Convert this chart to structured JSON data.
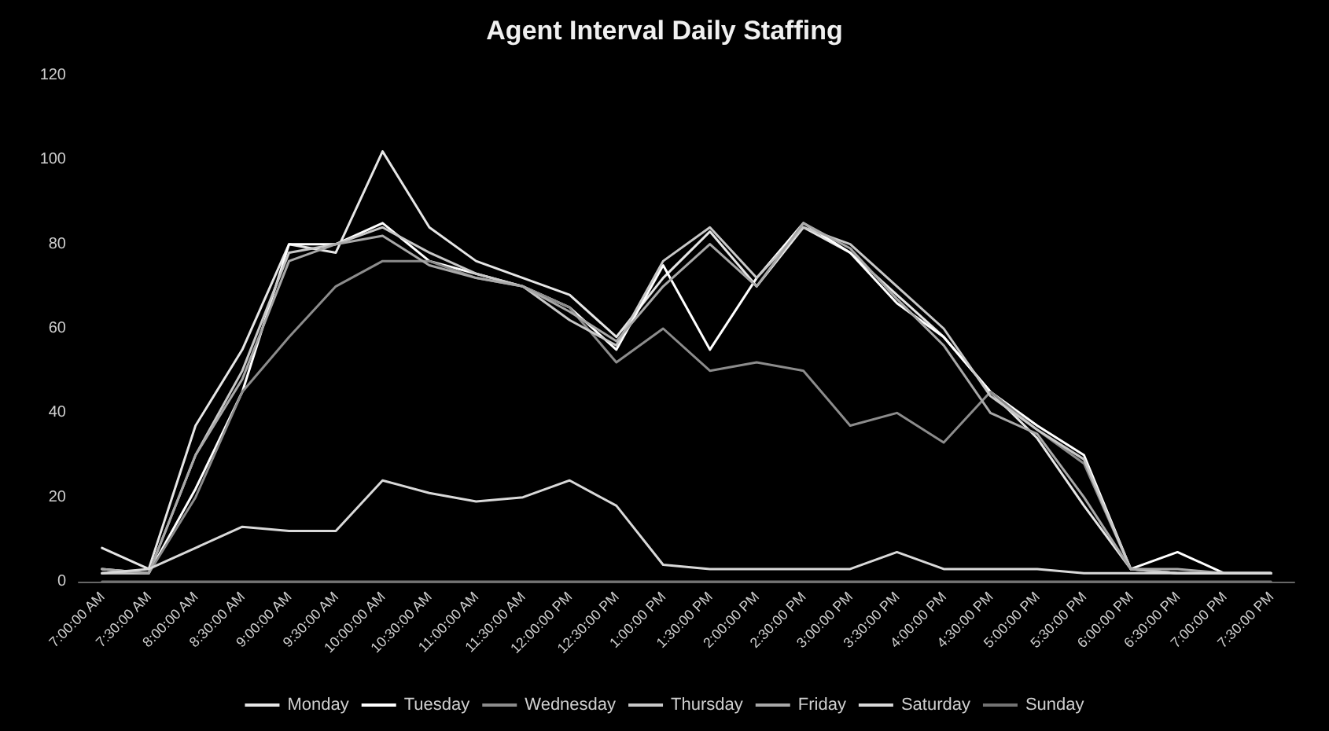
{
  "chart_data": {
    "type": "line",
    "title": "Agent Interval Daily Staffing",
    "categories": [
      "7:00:00 AM",
      "7:30:00 AM",
      "8:00:00 AM",
      "8:30:00 AM",
      "9:00:00 AM",
      "9:30:00 AM",
      "10:00:00 AM",
      "10:30:00 AM",
      "11:00:00 AM",
      "11:30:00 AM",
      "12:00:00 PM",
      "12:30:00 PM",
      "1:00:00 PM",
      "1:30:00 PM",
      "2:00:00 PM",
      "2:30:00 PM",
      "3:00:00 PM",
      "3:30:00 PM",
      "4:00:00 PM",
      "4:30:00 PM",
      "5:00:00 PM",
      "5:30:00 PM",
      "6:00:00 PM",
      "6:30:00 PM",
      "7:00:00 PM",
      "7:30:00 PM"
    ],
    "series": [
      {
        "name": "Monday",
        "color": "#e6e6e6",
        "values": [
          8,
          3,
          37,
          55,
          80,
          78,
          102,
          84,
          76,
          72,
          68,
          58,
          72,
          83,
          70,
          84,
          78,
          68,
          58,
          45,
          34,
          18,
          3,
          2,
          2,
          2
        ]
      },
      {
        "name": "Tuesday",
        "color": "#ffffff",
        "values": [
          3,
          2,
          22,
          45,
          80,
          80,
          85,
          76,
          73,
          70,
          65,
          55,
          75,
          55,
          72,
          85,
          78,
          66,
          58,
          45,
          37,
          30,
          3,
          7,
          2,
          2
        ]
      },
      {
        "name": "Wednesday",
        "color": "#8c8c8c",
        "values": [
          2,
          2,
          20,
          45,
          58,
          70,
          76,
          76,
          72,
          70,
          65,
          52,
          60,
          50,
          52,
          50,
          37,
          40,
          33,
          45,
          36,
          28,
          3,
          2,
          2,
          2
        ]
      },
      {
        "name": "Thursday",
        "color": "#c8c8c8",
        "values": [
          2,
          2,
          30,
          50,
          78,
          80,
          84,
          78,
          73,
          70,
          62,
          56,
          76,
          84,
          72,
          84,
          80,
          70,
          60,
          44,
          36,
          29,
          3,
          2,
          2,
          2
        ]
      },
      {
        "name": "Friday",
        "color": "#a8a8a8",
        "values": [
          3,
          2,
          30,
          48,
          76,
          80,
          82,
          75,
          72,
          70,
          64,
          57,
          70,
          80,
          70,
          85,
          79,
          67,
          56,
          40,
          35,
          20,
          3,
          3,
          2,
          2
        ]
      },
      {
        "name": "Saturday",
        "color": "#d9d9d9",
        "values": [
          2,
          3,
          8,
          13,
          12,
          12,
          24,
          21,
          19,
          20,
          24,
          18,
          4,
          3,
          3,
          3,
          3,
          7,
          3,
          3,
          3,
          2,
          2,
          2,
          2,
          2
        ]
      },
      {
        "name": "Sunday",
        "color": "#737373",
        "values": [
          0,
          0,
          0,
          0,
          0,
          0,
          0,
          0,
          0,
          0,
          0,
          0,
          0,
          0,
          0,
          0,
          0,
          0,
          0,
          0,
          0,
          0,
          0,
          0,
          0,
          0
        ]
      }
    ],
    "ylim": [
      0,
      120
    ],
    "yticks": [
      0,
      20,
      40,
      60,
      80,
      100,
      120
    ],
    "legend": "bottom",
    "marker": "none",
    "line_style": "solid"
  }
}
